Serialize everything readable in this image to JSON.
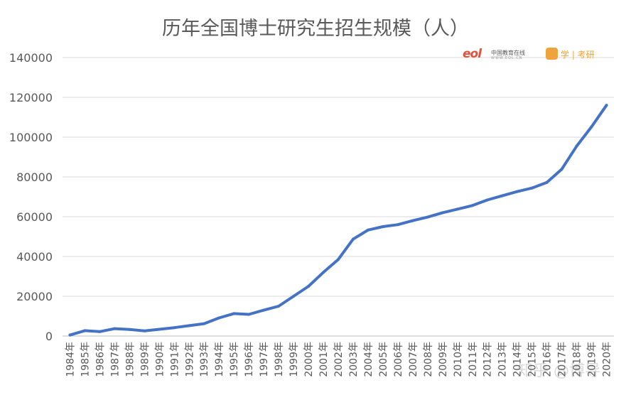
{
  "chart_data": {
    "type": "line",
    "title": "历年全国博士研究生招生规模（人）",
    "categories": [
      "1984年",
      "1985年",
      "1986年",
      "1987年",
      "1988年",
      "1989年",
      "1990年",
      "1991年",
      "1992年",
      "1993年",
      "1994年",
      "1995年",
      "1996年",
      "1997年",
      "1998年",
      "1999年",
      "2000年",
      "2001年",
      "2002年",
      "2003年",
      "2004年",
      "2005年",
      "2006年",
      "2007年",
      "2008年",
      "2009年",
      "2010年",
      "2011年",
      "2012年",
      "2013年",
      "2014年",
      "2015年",
      "2016年",
      "2017年",
      "2018年",
      "2019年",
      "2020年"
    ],
    "series": [
      {
        "values": [
          500,
          2700,
          2200,
          3700,
          3300,
          2600,
          3400,
          4200,
          5200,
          6200,
          9100,
          11300,
          10900,
          13000,
          15000,
          20000,
          25000,
          32000,
          38500,
          48700,
          53300,
          55000,
          56000,
          58000,
          59800,
          62000,
          63800,
          65600,
          68400,
          70500,
          72600,
          74400,
          77200,
          83900,
          95500,
          105200,
          116000
        ]
      }
    ],
    "y_ticks": [
      "0",
      "20000",
      "40000",
      "60000",
      "80000",
      "100000",
      "120000",
      "140000"
    ],
    "ylim": [
      0,
      140000
    ],
    "grid": true,
    "legend": "none",
    "line_color": "#4472c4"
  },
  "logos": {
    "eol_mark": "eol",
    "eol_text": "中国教育在线",
    "eol_sub": "WWW.EOL.CN",
    "xue_text": "学 | 考研"
  },
  "watermark": "知乎 @博导"
}
